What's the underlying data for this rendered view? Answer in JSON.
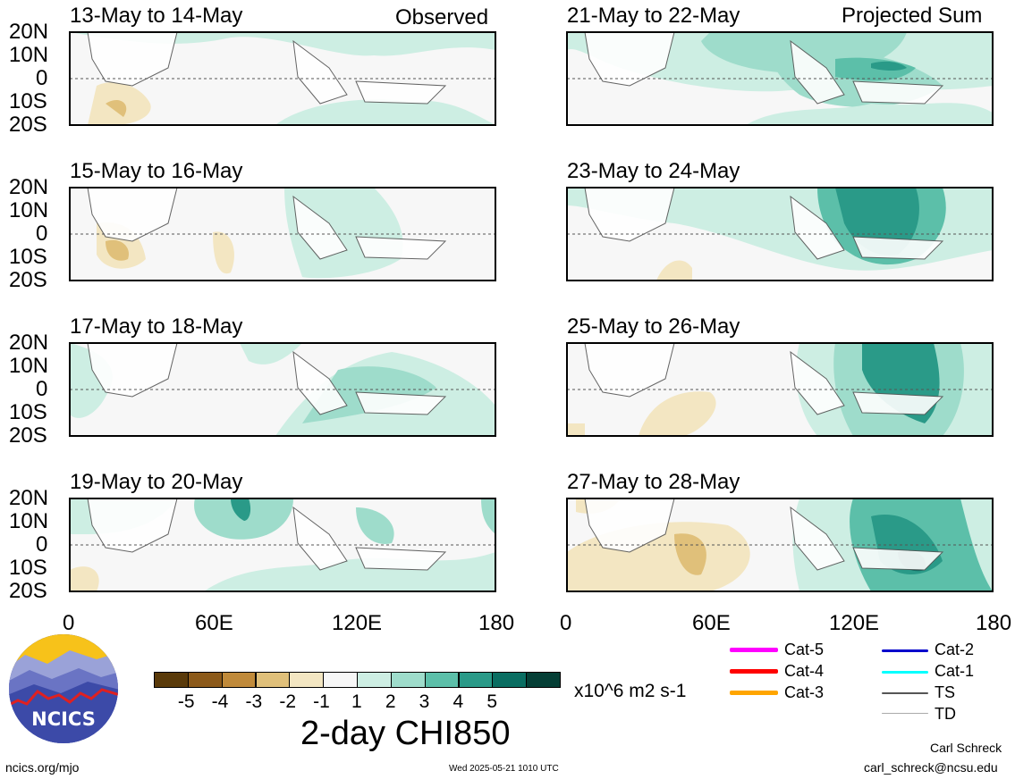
{
  "panels": [
    {
      "title": "13-May to 14-May",
      "tag": "Observed"
    },
    {
      "title": "21-May to 22-May",
      "tag": "Projected Sum"
    },
    {
      "title": "15-May to 16-May",
      "tag": ""
    },
    {
      "title": "23-May to 24-May",
      "tag": ""
    },
    {
      "title": "17-May to 18-May",
      "tag": ""
    },
    {
      "title": "25-May to 26-May",
      "tag": ""
    },
    {
      "title": "19-May to 20-May",
      "tag": ""
    },
    {
      "title": "27-May to 28-May",
      "tag": ""
    }
  ],
  "lat_labels": [
    "20N",
    "10N",
    "0",
    "10S",
    "20S"
  ],
  "lon_labels": [
    "0",
    "60E",
    "120E",
    "180"
  ],
  "colorbar": {
    "colors": [
      "#5a3a0a",
      "#8c5a1a",
      "#c08a3a",
      "#e0c07a",
      "#f3e6c2",
      "#f7f7f7",
      "#cdeee3",
      "#9edccb",
      "#5cbfa9",
      "#2a9a88",
      "#0a6e62",
      "#053f36"
    ],
    "labels": [
      "-5",
      "-4",
      "-3",
      "-2",
      "-1",
      "1",
      "2",
      "3",
      "4",
      "5"
    ],
    "units": "x10^6 m2 s-1",
    "title": "2-day CHI850"
  },
  "legend": [
    {
      "label": "Cat-5",
      "color": "#ff00ff"
    },
    {
      "label": "Cat-4",
      "color": "#ff0000"
    },
    {
      "label": "Cat-3",
      "color": "#ffa500"
    },
    {
      "label": "Cat-2",
      "color": "#0000cc"
    },
    {
      "label": "Cat-1",
      "color": "#00ffff"
    },
    {
      "label": "TS",
      "color": "#555555"
    },
    {
      "label": "TD",
      "color": "#aaaaaa"
    }
  ],
  "logo": {
    "text": "NCICS"
  },
  "footer": {
    "url": "ncics.org/mjo",
    "timestamp": "Wed 2025-05-21 1010 UTC",
    "author": "Carl Schreck",
    "email": "carl_schreck@ncsu.edu"
  }
}
